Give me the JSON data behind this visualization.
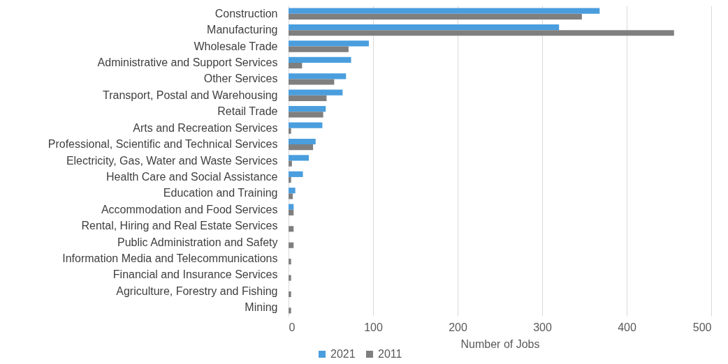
{
  "chart_data": {
    "type": "bar",
    "orientation": "horizontal",
    "xlabel": "Number of Jobs",
    "categories": [
      "Construction",
      "Manufacturing",
      "Wholesale Trade",
      "Administrative and Support Services",
      "Other Services",
      "Transport, Postal and Warehousing",
      "Retail Trade",
      "Arts and Recreation Services",
      "Professional, Scientific and Technical Services",
      "Electricity, Gas, Water and Waste Services",
      "Health Care and Social Assistance",
      "Education and Training",
      "Accommodation and Food Services",
      "Rental, Hiring and Real Estate Services",
      "Public Administration and Safety",
      "Information Media and Telecommunications",
      "Financial and Insurance Services",
      "Agriculture, Forestry and Fishing",
      "Mining"
    ],
    "series": [
      {
        "name": "2021",
        "color": "#4a9ede",
        "values": [
          368,
          320,
          95,
          74,
          68,
          64,
          44,
          40,
          32,
          24,
          17,
          8,
          6,
          0,
          0,
          0,
          0,
          0,
          0
        ]
      },
      {
        "name": "2011",
        "color": "#7f7f7f",
        "values": [
          347,
          456,
          71,
          16,
          54,
          45,
          41,
          3,
          29,
          4,
          3,
          5,
          6,
          6,
          6,
          3,
          3,
          3,
          3
        ]
      }
    ],
    "xlim": [
      0,
      500
    ],
    "xticks": [
      0,
      100,
      200,
      300,
      400,
      500
    ],
    "grid": "x",
    "legend": "bottom"
  }
}
